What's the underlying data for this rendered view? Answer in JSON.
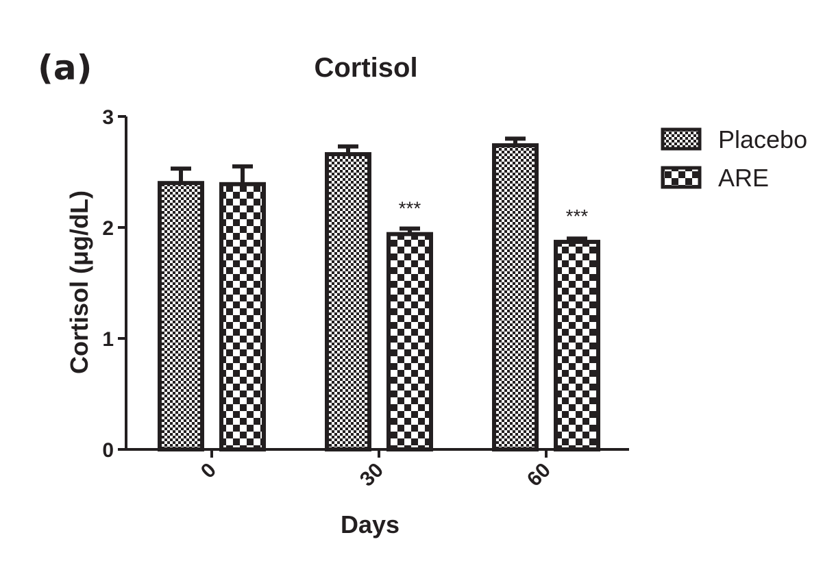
{
  "panel_label": "(a)",
  "chart_data": {
    "type": "bar",
    "title": "Cortisol",
    "xlabel": "Days",
    "ylabel": "Cortisol (μg/dL)",
    "categories": [
      "0",
      "30",
      "60"
    ],
    "ylim": [
      0,
      3
    ],
    "yticks": [
      "0",
      "1",
      "2",
      "3"
    ],
    "grid": false,
    "legend_position": "top-right",
    "series": [
      {
        "name": "Placebo",
        "pattern": "fine-checker",
        "values": [
          2.4,
          2.66,
          2.74
        ],
        "errors": [
          0.13,
          0.07,
          0.06
        ]
      },
      {
        "name": "ARE",
        "pattern": "coarse-checker",
        "values": [
          2.39,
          1.94,
          1.87
        ],
        "errors": [
          0.16,
          0.05,
          0.03
        ]
      }
    ],
    "annotations": [
      {
        "category": "30",
        "series": "ARE",
        "text": "***"
      },
      {
        "category": "60",
        "series": "ARE",
        "text": "***"
      }
    ],
    "colors": {
      "ink": "#231f20",
      "background": "#ffffff"
    }
  }
}
